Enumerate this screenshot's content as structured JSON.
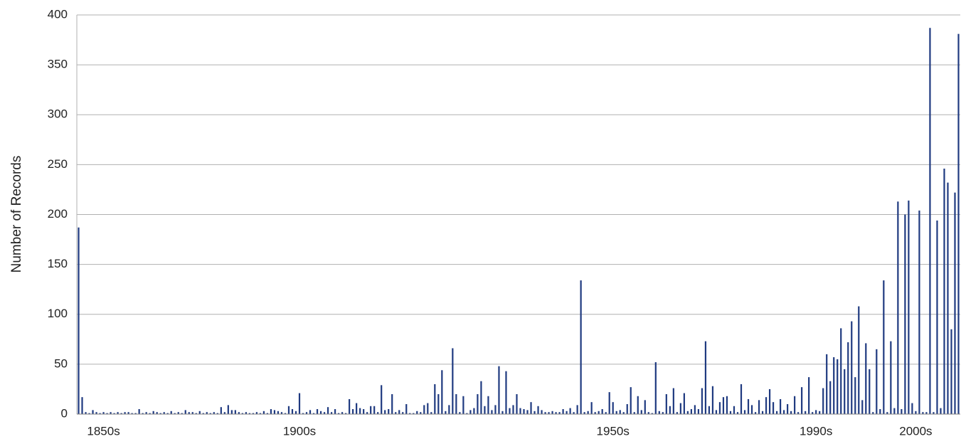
{
  "chart_data": {
    "type": "bar",
    "y_label": "Number of Records",
    "color": "#1f3a80",
    "grid": true,
    "ylim": [
      0,
      400
    ],
    "yticks": [
      0,
      50,
      100,
      150,
      200,
      250,
      300,
      350,
      400
    ],
    "categories": [
      null,
      null,
      null,
      null,
      null,
      null,
      null,
      "1850s",
      null,
      null,
      null,
      null,
      null,
      null,
      null,
      null,
      null,
      null,
      null,
      null,
      null,
      null,
      null,
      null,
      null,
      null,
      null,
      null,
      null,
      null,
      null,
      null,
      null,
      null,
      null,
      null,
      null,
      null,
      null,
      null,
      null,
      null,
      null,
      null,
      null,
      null,
      null,
      null,
      null,
      null,
      null,
      null,
      null,
      null,
      null,
      null,
      null,
      null,
      null,
      null,
      null,
      null,
      "1900s",
      null,
      null,
      null,
      null,
      null,
      null,
      null,
      null,
      null,
      null,
      null,
      null,
      null,
      null,
      null,
      null,
      null,
      null,
      null,
      null,
      null,
      null,
      null,
      null,
      null,
      null,
      null,
      null,
      null,
      null,
      null,
      null,
      null,
      null,
      null,
      null,
      null,
      null,
      null,
      null,
      null,
      null,
      null,
      null,
      null,
      null,
      null,
      null,
      null,
      null,
      null,
      null,
      null,
      null,
      null,
      null,
      null,
      null,
      null,
      null,
      null,
      null,
      null,
      null,
      null,
      null,
      null,
      null,
      null,
      null,
      null,
      null,
      null,
      null,
      null,
      null,
      null,
      null,
      null,
      null,
      null,
      null,
      null,
      null,
      null,
      null,
      null,
      "1950s",
      null,
      null,
      null,
      null,
      null,
      null,
      null,
      null,
      null,
      null,
      null,
      null,
      null,
      null,
      null,
      null,
      null,
      null,
      null,
      null,
      null,
      null,
      null,
      null,
      null,
      null,
      null,
      null,
      null,
      null,
      null,
      null,
      null,
      null,
      null,
      null,
      null,
      null,
      null,
      null,
      null,
      null,
      null,
      null,
      null,
      null,
      null,
      null,
      null,
      null,
      null,
      null,
      null,
      null,
      null,
      null,
      "1990s",
      null,
      null,
      null,
      null,
      null,
      null,
      null,
      null,
      null,
      null,
      null,
      null,
      null,
      null,
      null,
      null,
      null,
      null,
      null,
      null,
      null,
      null,
      null,
      null,
      null,
      null,
      null,
      "2000s",
      null,
      null,
      null,
      null,
      null,
      null,
      null,
      null,
      null,
      null,
      null,
      null
    ],
    "values": [
      187,
      17,
      2,
      1,
      4,
      2,
      1,
      2,
      1,
      2,
      1,
      2,
      1,
      2,
      2,
      1,
      1,
      5,
      1,
      2,
      1,
      3,
      2,
      1,
      2,
      1,
      3,
      1,
      2,
      1,
      4,
      2,
      2,
      1,
      3,
      1,
      2,
      1,
      2,
      1,
      7,
      2,
      9,
      4,
      4,
      2,
      1,
      2,
      1,
      1,
      2,
      1,
      3,
      1,
      5,
      4,
      3,
      2,
      1,
      8,
      5,
      3,
      21,
      1,
      2,
      4,
      1,
      5,
      3,
      2,
      7,
      2,
      5,
      1,
      2,
      1,
      15,
      5,
      11,
      6,
      5,
      2,
      8,
      8,
      2,
      29,
      4,
      5,
      20,
      2,
      4,
      2,
      10,
      1,
      1,
      3,
      2,
      9,
      11,
      2,
      30,
      20,
      44,
      3,
      9,
      66,
      20,
      2,
      18,
      1,
      4,
      6,
      20,
      33,
      8,
      18,
      4,
      9,
      48,
      3,
      43,
      6,
      9,
      20,
      6,
      5,
      4,
      12,
      3,
      8,
      4,
      2,
      2,
      3,
      2,
      2,
      5,
      3,
      6,
      2,
      9,
      134,
      2,
      3,
      12,
      2,
      3,
      5,
      2,
      22,
      12,
      3,
      4,
      2,
      10,
      27,
      2,
      18,
      4,
      14,
      2,
      1,
      52,
      3,
      2,
      20,
      8,
      26,
      2,
      11,
      21,
      3,
      5,
      9,
      5,
      26,
      73,
      8,
      28,
      4,
      12,
      17,
      18,
      3,
      8,
      2,
      30,
      4,
      15,
      9,
      2,
      14,
      3,
      17,
      25,
      12,
      3,
      15,
      4,
      10,
      3,
      18,
      2,
      27,
      3,
      37,
      2,
      4,
      3,
      26,
      60,
      33,
      57,
      55,
      86,
      45,
      72,
      93,
      37,
      108,
      14,
      71,
      45,
      2,
      65,
      5,
      134,
      2,
      73,
      6,
      213,
      5,
      200,
      214,
      11,
      3,
      204,
      2,
      2,
      387,
      2,
      194,
      6,
      246,
      232,
      85,
      222,
      381
    ]
  }
}
